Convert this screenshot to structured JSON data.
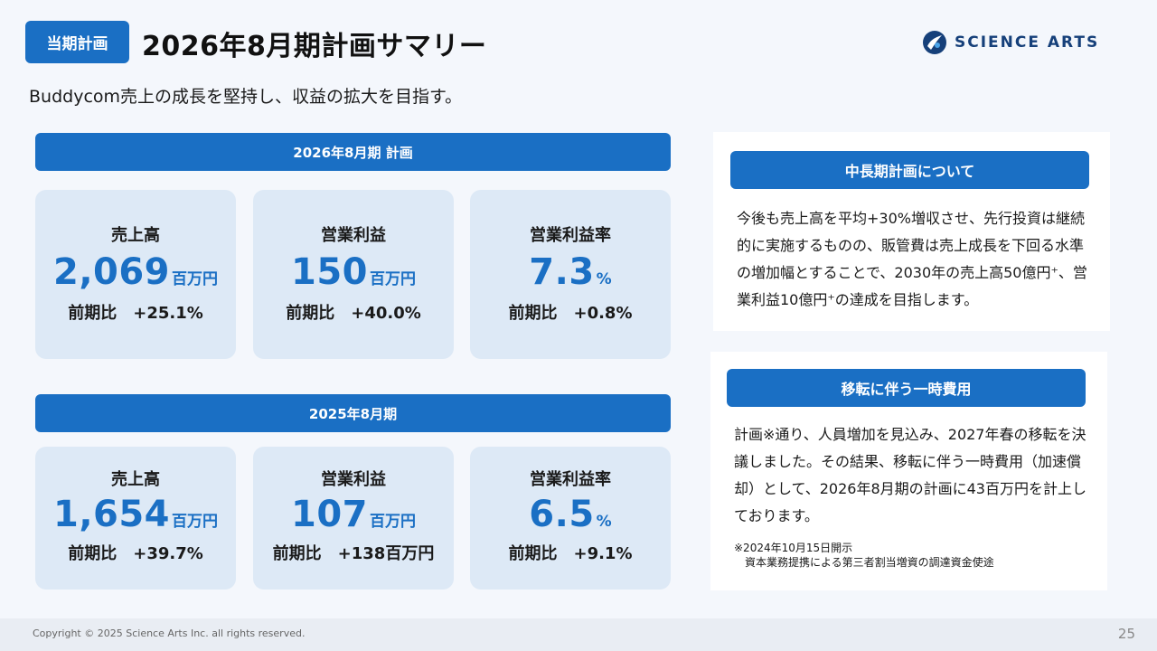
{
  "header": {
    "badge": "当期計画",
    "title": "2026年8月期計画サマリー",
    "logo_text": "Science Arts",
    "subtitle": "Buddycom売上の成長を堅持し、収益の拡大を目指す。"
  },
  "plan": {
    "section_title": "2026年8月期 計画",
    "cards": [
      {
        "label": "売上高",
        "value": "2,069",
        "unit": "百万円",
        "compare": "前期比　+25.1%"
      },
      {
        "label": "営業利益",
        "value": "150",
        "unit": "百万円",
        "compare": "前期比　+40.0%"
      },
      {
        "label": "営業利益率",
        "value": "7.3",
        "unit": "%",
        "compare": "前期比　+0.8%"
      }
    ]
  },
  "prior": {
    "section_title": "2025年8月期",
    "cards": [
      {
        "label": "売上高",
        "value": "1,654",
        "unit": "百万円",
        "compare": "前期比　+39.7%"
      },
      {
        "label": "営業利益",
        "value": "107",
        "unit": "百万円",
        "compare": "前期比　+138百万円"
      },
      {
        "label": "営業利益率",
        "value": "6.5",
        "unit": "%",
        "compare": "前期比　+9.1%"
      }
    ]
  },
  "midterm": {
    "title": "中長期計画について",
    "text": "今後も売上高を平均+30%増収させ、先行投資は継続的に実施するものの、販管費は売上成長を下回る水準の増加幅とすることで、2030年の売上高50億円⁺、営業利益10億円⁺の達成を目指します。"
  },
  "relocation": {
    "title": "移転に伴う一時費用",
    "text": "計画※通り、人員増加を見込み、2027年春の移転を決議しました。その結果、移転に伴う一時費用（加速償却）として、2026年8月期の計画に43百万円を計上しております。",
    "note": "※2024年10月15日開示\n　資本業務提携による第三者割当増資の調達資金使途"
  },
  "footer": {
    "copyright": "Copyright © 2025 Science Arts Inc. all rights reserved.",
    "page": "25"
  },
  "colors": {
    "accent": "#1a6fc4",
    "card_bg": "#dde9f6",
    "page_bg": "#f4f7fc"
  }
}
